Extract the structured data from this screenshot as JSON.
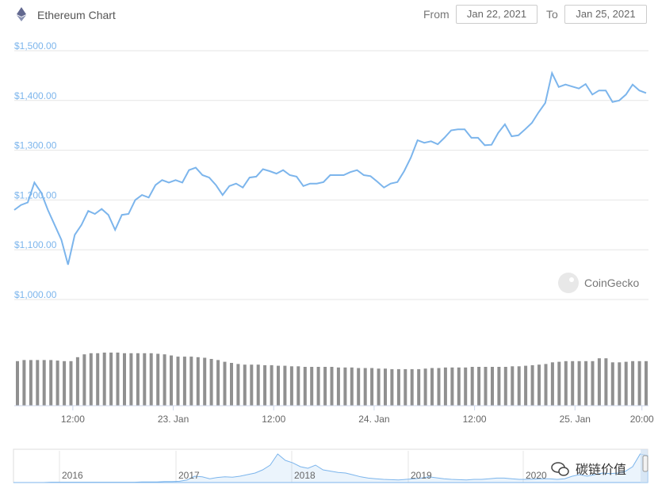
{
  "header": {
    "title": "Ethereum Chart",
    "from_label": "From",
    "from_value": "Jan 22, 2021",
    "to_label": "To",
    "to_value": "Jan 25, 2021"
  },
  "watermark": {
    "brand": "CoinGecko",
    "badge": "碳链价值"
  },
  "colors": {
    "line": "#7cb5ec",
    "volume": "#909090",
    "grid": "#e6e6e6"
  },
  "chart_data": [
    {
      "type": "line",
      "ylim": [
        1000,
        1500
      ],
      "y_ticks": [
        "$1,500.00",
        "$1,400.00",
        "$1,300.00",
        "$1,200.00",
        "$1,100.00",
        "$1,000.00"
      ],
      "x_ticks": [
        "12:00",
        "23. Jan",
        "12:00",
        "24. Jan",
        "12:00",
        "25. Jan",
        "20:00"
      ],
      "grid": true,
      "series": [
        {
          "values": [
            1180,
            1190,
            1195,
            1235,
            1215,
            1180,
            1150,
            1120,
            1070,
            1130,
            1150,
            1178,
            1172,
            1182,
            1170,
            1140,
            1170,
            1172,
            1200,
            1210,
            1205,
            1230,
            1240,
            1235,
            1240,
            1235,
            1260,
            1265,
            1250,
            1245,
            1230,
            1210,
            1228,
            1233,
            1225,
            1245,
            1247,
            1262,
            1258,
            1253,
            1260,
            1250,
            1247,
            1228,
            1233,
            1233,
            1236,
            1250,
            1250,
            1250,
            1256,
            1260,
            1250,
            1248,
            1237,
            1225,
            1233,
            1236,
            1258,
            1285,
            1320,
            1315,
            1318,
            1312,
            1325,
            1340,
            1342,
            1342,
            1325,
            1325,
            1310,
            1311,
            1335,
            1352,
            1328,
            1330,
            1342,
            1355,
            1376,
            1395,
            1455,
            1427,
            1432,
            1428,
            1424,
            1433,
            1412,
            1420,
            1420,
            1397,
            1400,
            1412,
            1432,
            1420,
            1415
          ]
        }
      ]
    },
    {
      "type": "bar",
      "series": [
        {
          "values": [
            0.78,
            0.8,
            0.8,
            0.8,
            0.8,
            0.8,
            0.79,
            0.78,
            0.78,
            0.85,
            0.9,
            0.92,
            0.92,
            0.93,
            0.93,
            0.93,
            0.92,
            0.92,
            0.92,
            0.92,
            0.92,
            0.91,
            0.9,
            0.88,
            0.86,
            0.86,
            0.86,
            0.85,
            0.84,
            0.82,
            0.8,
            0.77,
            0.75,
            0.73,
            0.72,
            0.72,
            0.72,
            0.71,
            0.71,
            0.7,
            0.7,
            0.69,
            0.69,
            0.68,
            0.68,
            0.68,
            0.68,
            0.68,
            0.67,
            0.67,
            0.67,
            0.66,
            0.66,
            0.66,
            0.65,
            0.65,
            0.64,
            0.64,
            0.64,
            0.64,
            0.64,
            0.65,
            0.66,
            0.66,
            0.67,
            0.67,
            0.67,
            0.67,
            0.68,
            0.68,
            0.68,
            0.68,
            0.68,
            0.68,
            0.69,
            0.69,
            0.7,
            0.71,
            0.72,
            0.73,
            0.76,
            0.77,
            0.78,
            0.78,
            0.78,
            0.78,
            0.78,
            0.83,
            0.83,
            0.76,
            0.76,
            0.77,
            0.78,
            0.78,
            0.78
          ]
        }
      ]
    },
    {
      "type": "area",
      "x_ticks": [
        "2016",
        "2017",
        "2018",
        "2019",
        "2020"
      ],
      "series": [
        {
          "values": [
            0.0,
            0.0,
            0.0,
            0.0,
            0.0,
            0.01,
            0.01,
            0.01,
            0.01,
            0.01,
            0.01,
            0.01,
            0.01,
            0.01,
            0.01,
            0.01,
            0.01,
            0.02,
            0.02,
            0.02,
            0.03,
            0.03,
            0.04,
            0.08,
            0.2,
            0.18,
            0.12,
            0.16,
            0.18,
            0.17,
            0.2,
            0.25,
            0.3,
            0.4,
            0.55,
            0.9,
            0.7,
            0.62,
            0.5,
            0.45,
            0.55,
            0.4,
            0.36,
            0.32,
            0.3,
            0.24,
            0.18,
            0.14,
            0.12,
            0.1,
            0.09,
            0.08,
            0.1,
            0.12,
            0.14,
            0.18,
            0.15,
            0.12,
            0.1,
            0.09,
            0.08,
            0.1,
            0.1,
            0.12,
            0.14,
            0.14,
            0.12,
            0.1,
            0.1,
            0.11,
            0.12,
            0.12,
            0.1,
            0.12,
            0.2,
            0.25,
            0.2,
            0.25,
            0.3,
            0.28,
            0.3,
            0.35,
            0.5,
            0.9,
            0.85
          ]
        }
      ]
    }
  ]
}
